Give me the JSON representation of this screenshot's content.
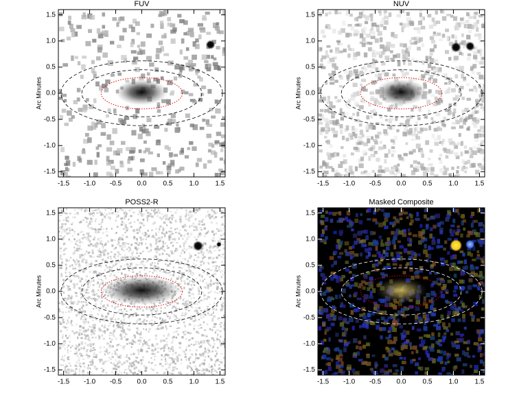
{
  "chart_data": [
    {
      "type": "image",
      "title": "FUV",
      "y_label": "Arc Minutes",
      "background": "#ffffff",
      "xlim": [
        -1.6,
        1.6
      ],
      "ylim": [
        -1.6,
        1.6
      ],
      "xticks": [
        -1.5,
        {
          "value": -1,
          "label": "-1.0"
        },
        -0.5,
        {
          "value": 0,
          "label": "0.0"
        },
        0.5,
        {
          "value": 1,
          "label": "1.0"
        },
        1.5
      ],
      "yticks": [
        -1.5,
        {
          "value": -1,
          "label": "-1.0"
        },
        -0.5,
        {
          "value": 0,
          "label": "0.0"
        },
        0.5,
        {
          "value": 1,
          "label": "1.0"
        },
        1.5
      ]
    },
    {
      "type": "image",
      "title": "NUV",
      "y_label": "Arc Minutes",
      "background": "#ffffff",
      "xlim": [
        -1.6,
        1.6
      ],
      "ylim": [
        -1.6,
        1.6
      ],
      "xticks": [
        -1.5,
        {
          "value": -1,
          "label": "-1.0"
        },
        -0.5,
        {
          "value": 0,
          "label": "0.0"
        },
        0.5,
        {
          "value": 1,
          "label": "1.0"
        },
        1.5
      ],
      "yticks": [
        -1.5,
        {
          "value": -1,
          "label": "-1.0"
        },
        -0.5,
        {
          "value": 0,
          "label": "0.0"
        },
        0.5,
        {
          "value": 1,
          "label": "1.0"
        },
        1.5
      ]
    },
    {
      "type": "image",
      "title": "POSS2-R",
      "y_label": "Arc Minutes",
      "background": "#ffffff",
      "xlim": [
        -1.6,
        1.6
      ],
      "ylim": [
        -1.6,
        1.6
      ],
      "xticks": [
        -1.5,
        {
          "value": -1,
          "label": "-1.0"
        },
        -0.5,
        {
          "value": 0,
          "label": "0.0"
        },
        0.5,
        {
          "value": 1,
          "label": "1.0"
        },
        1.5
      ],
      "yticks": [
        -1.5,
        {
          "value": -1,
          "label": "-1.0"
        },
        -0.5,
        {
          "value": 0,
          "label": "0.0"
        },
        0.5,
        {
          "value": 1,
          "label": "1.0"
        },
        1.5
      ]
    },
    {
      "type": "image",
      "title": "Masked Composite",
      "y_label": "Arc Minutes",
      "background": "#000000",
      "xlim": [
        -1.6,
        1.6
      ],
      "ylim": [
        -1.6,
        1.6
      ],
      "xticks": [
        -1.5,
        {
          "value": -1,
          "label": "-1.0"
        },
        -0.5,
        {
          "value": 0,
          "label": "0.0"
        },
        0.5,
        {
          "value": 1,
          "label": "1.0"
        },
        1.5
      ],
      "yticks": [
        -1.5,
        {
          "value": -1,
          "label": "-1.0"
        },
        -0.5,
        {
          "value": 0,
          "label": "0.0"
        },
        0.5,
        {
          "value": 1,
          "label": "1.0"
        },
        1.5
      ]
    }
  ]
}
